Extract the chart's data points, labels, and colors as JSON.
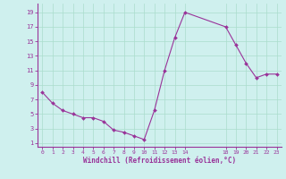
{
  "x": [
    0,
    1,
    2,
    3,
    4,
    5,
    6,
    7,
    8,
    9,
    10,
    11,
    12,
    13,
    14,
    18,
    19,
    20,
    21,
    22,
    23
  ],
  "y": [
    8.0,
    6.5,
    5.5,
    5.0,
    4.5,
    4.5,
    4.0,
    2.8,
    2.5,
    2.0,
    1.5,
    5.5,
    11.0,
    15.5,
    19.0,
    17.0,
    14.5,
    12.0,
    10.0,
    10.5,
    10.5
  ],
  "bg_color": "#cff0ee",
  "line_color": "#993399",
  "marker_color": "#993399",
  "grid_color": "#aaddcc",
  "axis_label_color": "#993399",
  "tick_color": "#993399",
  "xlabel": "Windchill (Refroidissement éolien,°C)",
  "xticks": [
    0,
    1,
    2,
    3,
    4,
    5,
    6,
    7,
    8,
    9,
    10,
    11,
    12,
    13,
    14,
    18,
    19,
    20,
    21,
    22,
    23
  ],
  "yticks": [
    1,
    3,
    5,
    7,
    9,
    11,
    13,
    15,
    17,
    19
  ],
  "xlim": [
    -0.5,
    23.5
  ],
  "ylim": [
    0.5,
    20.2
  ]
}
